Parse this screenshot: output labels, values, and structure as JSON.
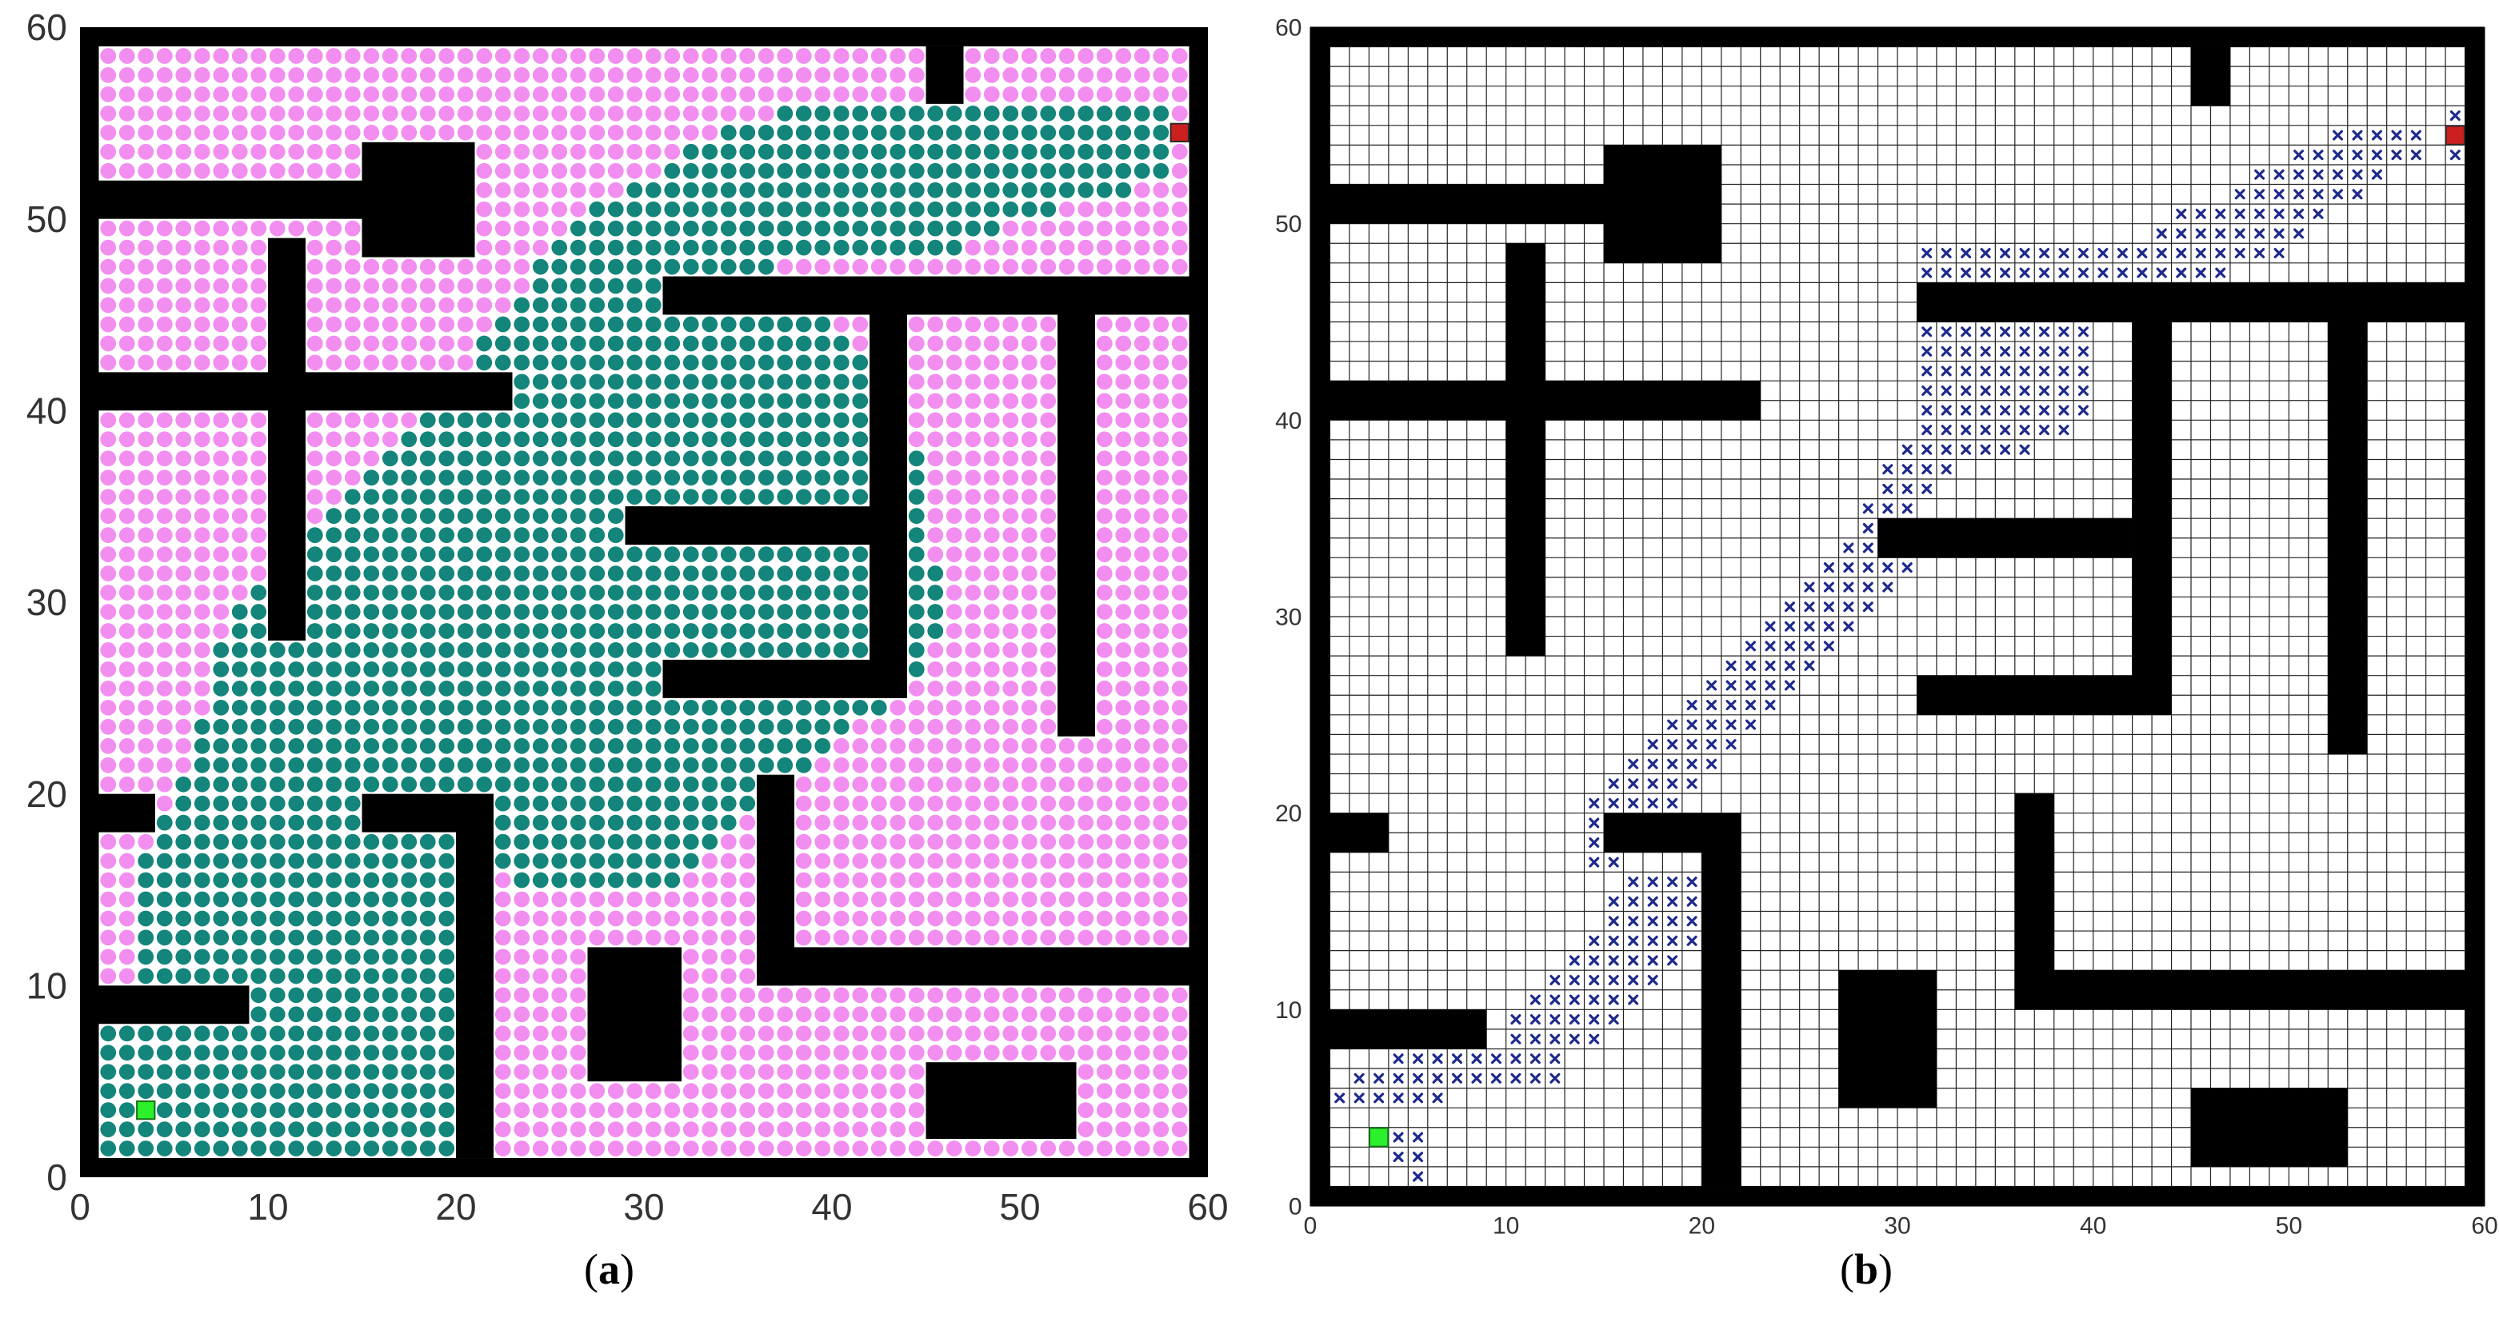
{
  "panels": [
    {
      "id": "a",
      "caption_letter": "a",
      "style": "dots"
    },
    {
      "id": "b",
      "caption_letter": "b",
      "style": "grid"
    }
  ],
  "axes": {
    "xlim": [
      0,
      60
    ],
    "ylim": [
      0,
      60
    ],
    "x_ticks": [
      0,
      10,
      20,
      30,
      40,
      50,
      60
    ],
    "y_ticks": [
      0,
      10,
      20,
      30,
      40,
      50,
      60
    ]
  },
  "colors": {
    "obstacle": "#000000",
    "free_dot": "#f28ef0",
    "explored_dot": "#13857b",
    "path_marker": "#1f2a8c",
    "start": "#2bf02b",
    "goal": "#cc1f1f",
    "grid_line": "#222222"
  },
  "map": {
    "obstacles": [
      [
        0,
        0,
        60,
        1
      ],
      [
        0,
        59,
        60,
        60
      ],
      [
        0,
        0,
        1,
        60
      ],
      [
        59,
        0,
        60,
        60
      ],
      [
        45,
        56,
        47,
        59
      ],
      [
        1,
        50,
        15,
        52
      ],
      [
        15,
        48,
        21,
        54
      ],
      [
        10,
        28,
        12,
        49
      ],
      [
        1,
        40,
        23,
        42
      ],
      [
        31,
        45,
        59,
        47
      ],
      [
        42,
        25,
        44,
        45
      ],
      [
        31,
        25,
        44,
        27
      ],
      [
        29,
        33,
        42,
        35
      ],
      [
        29,
        33,
        31,
        35
      ],
      [
        52,
        23,
        54,
        45
      ],
      [
        1,
        18,
        4,
        20
      ],
      [
        1,
        8,
        9,
        10
      ],
      [
        15,
        18,
        22,
        20
      ],
      [
        20,
        1,
        22,
        20
      ],
      [
        27,
        5,
        32,
        12
      ],
      [
        36,
        10,
        59,
        12
      ],
      [
        36,
        10,
        38,
        21
      ],
      [
        45,
        2,
        53,
        6
      ]
    ],
    "start": [
      3.5,
      3.5
    ],
    "goal": [
      58.5,
      54.5
    ]
  },
  "path_cells": [
    [
      5,
      1
    ],
    [
      4,
      2
    ],
    [
      5,
      2
    ],
    [
      4,
      3
    ],
    [
      5,
      3
    ],
    [
      1,
      5
    ],
    [
      2,
      5
    ],
    [
      3,
      5
    ],
    [
      4,
      5
    ],
    [
      5,
      5
    ],
    [
      6,
      5
    ],
    [
      2,
      6
    ],
    [
      3,
      6
    ],
    [
      4,
      6
    ],
    [
      5,
      6
    ],
    [
      6,
      6
    ],
    [
      7,
      6
    ],
    [
      8,
      6
    ],
    [
      9,
      6
    ],
    [
      10,
      6
    ],
    [
      11,
      6
    ],
    [
      12,
      6
    ],
    [
      4,
      7
    ],
    [
      5,
      7
    ],
    [
      6,
      7
    ],
    [
      7,
      7
    ],
    [
      8,
      7
    ],
    [
      9,
      7
    ],
    [
      10,
      7
    ],
    [
      11,
      7
    ],
    [
      12,
      7
    ],
    [
      10,
      8
    ],
    [
      11,
      8
    ],
    [
      12,
      8
    ],
    [
      13,
      8
    ],
    [
      14,
      8
    ],
    [
      10,
      9
    ],
    [
      11,
      9
    ],
    [
      12,
      9
    ],
    [
      13,
      9
    ],
    [
      14,
      9
    ],
    [
      15,
      9
    ],
    [
      11,
      10
    ],
    [
      12,
      10
    ],
    [
      13,
      10
    ],
    [
      14,
      10
    ],
    [
      15,
      10
    ],
    [
      16,
      10
    ],
    [
      12,
      11
    ],
    [
      13,
      11
    ],
    [
      14,
      11
    ],
    [
      15,
      11
    ],
    [
      16,
      11
    ],
    [
      17,
      11
    ],
    [
      13,
      12
    ],
    [
      14,
      12
    ],
    [
      15,
      12
    ],
    [
      16,
      12
    ],
    [
      17,
      12
    ],
    [
      18,
      12
    ],
    [
      14,
      13
    ],
    [
      15,
      13
    ],
    [
      16,
      13
    ],
    [
      17,
      13
    ],
    [
      18,
      13
    ],
    [
      19,
      13
    ],
    [
      20,
      13
    ],
    [
      15,
      14
    ],
    [
      16,
      14
    ],
    [
      17,
      14
    ],
    [
      18,
      14
    ],
    [
      19,
      14
    ],
    [
      20,
      14
    ],
    [
      15,
      15
    ],
    [
      16,
      15
    ],
    [
      17,
      15
    ],
    [
      18,
      15
    ],
    [
      19,
      15
    ],
    [
      20,
      15
    ],
    [
      16,
      16
    ],
    [
      17,
      16
    ],
    [
      18,
      16
    ],
    [
      19,
      16
    ],
    [
      20,
      16
    ],
    [
      14,
      17
    ],
    [
      15,
      17
    ],
    [
      14,
      18
    ],
    [
      15,
      18
    ],
    [
      16,
      18
    ],
    [
      14,
      19
    ],
    [
      15,
      19
    ],
    [
      16,
      19
    ],
    [
      17,
      19
    ],
    [
      14,
      20
    ],
    [
      15,
      20
    ],
    [
      16,
      20
    ],
    [
      17,
      20
    ],
    [
      18,
      20
    ],
    [
      15,
      21
    ],
    [
      16,
      21
    ],
    [
      17,
      21
    ],
    [
      18,
      21
    ],
    [
      19,
      21
    ],
    [
      16,
      22
    ],
    [
      17,
      22
    ],
    [
      18,
      22
    ],
    [
      19,
      22
    ],
    [
      20,
      22
    ],
    [
      17,
      23
    ],
    [
      18,
      23
    ],
    [
      19,
      23
    ],
    [
      20,
      23
    ],
    [
      21,
      23
    ],
    [
      18,
      24
    ],
    [
      19,
      24
    ],
    [
      20,
      24
    ],
    [
      21,
      24
    ],
    [
      22,
      24
    ],
    [
      19,
      25
    ],
    [
      20,
      25
    ],
    [
      21,
      25
    ],
    [
      22,
      25
    ],
    [
      23,
      25
    ],
    [
      20,
      26
    ],
    [
      21,
      26
    ],
    [
      22,
      26
    ],
    [
      23,
      26
    ],
    [
      24,
      26
    ],
    [
      21,
      27
    ],
    [
      22,
      27
    ],
    [
      23,
      27
    ],
    [
      24,
      27
    ],
    [
      25,
      27
    ],
    [
      22,
      28
    ],
    [
      23,
      28
    ],
    [
      24,
      28
    ],
    [
      25,
      28
    ],
    [
      26,
      28
    ],
    [
      23,
      29
    ],
    [
      24,
      29
    ],
    [
      25,
      29
    ],
    [
      26,
      29
    ],
    [
      27,
      29
    ],
    [
      24,
      30
    ],
    [
      25,
      30
    ],
    [
      26,
      30
    ],
    [
      27,
      30
    ],
    [
      28,
      30
    ],
    [
      25,
      31
    ],
    [
      26,
      31
    ],
    [
      27,
      31
    ],
    [
      28,
      31
    ],
    [
      29,
      31
    ],
    [
      26,
      32
    ],
    [
      27,
      32
    ],
    [
      28,
      32
    ],
    [
      29,
      32
    ],
    [
      30,
      32
    ],
    [
      27,
      33
    ],
    [
      28,
      33
    ],
    [
      29,
      33
    ],
    [
      30,
      33
    ],
    [
      28,
      34
    ],
    [
      29,
      34
    ],
    [
      30,
      34
    ],
    [
      28,
      35
    ],
    [
      29,
      35
    ],
    [
      30,
      35
    ],
    [
      29,
      36
    ],
    [
      30,
      36
    ],
    [
      31,
      36
    ],
    [
      29,
      37
    ],
    [
      30,
      37
    ],
    [
      31,
      37
    ],
    [
      32,
      37
    ],
    [
      30,
      38
    ],
    [
      31,
      38
    ],
    [
      32,
      38
    ],
    [
      33,
      38
    ],
    [
      34,
      38
    ],
    [
      35,
      38
    ],
    [
      36,
      38
    ],
    [
      31,
      39
    ],
    [
      32,
      39
    ],
    [
      33,
      39
    ],
    [
      34,
      39
    ],
    [
      35,
      39
    ],
    [
      36,
      39
    ],
    [
      37,
      39
    ],
    [
      38,
      39
    ],
    [
      31,
      40
    ],
    [
      32,
      40
    ],
    [
      33,
      40
    ],
    [
      34,
      40
    ],
    [
      35,
      40
    ],
    [
      36,
      40
    ],
    [
      37,
      40
    ],
    [
      38,
      40
    ],
    [
      39,
      40
    ],
    [
      31,
      41
    ],
    [
      32,
      41
    ],
    [
      33,
      41
    ],
    [
      34,
      41
    ],
    [
      35,
      41
    ],
    [
      36,
      41
    ],
    [
      37,
      41
    ],
    [
      38,
      41
    ],
    [
      39,
      41
    ],
    [
      31,
      42
    ],
    [
      32,
      42
    ],
    [
      33,
      42
    ],
    [
      34,
      42
    ],
    [
      35,
      42
    ],
    [
      36,
      42
    ],
    [
      37,
      42
    ],
    [
      38,
      42
    ],
    [
      39,
      42
    ],
    [
      31,
      43
    ],
    [
      32,
      43
    ],
    [
      33,
      43
    ],
    [
      34,
      43
    ],
    [
      35,
      43
    ],
    [
      36,
      43
    ],
    [
      37,
      43
    ],
    [
      38,
      43
    ],
    [
      39,
      43
    ],
    [
      31,
      44
    ],
    [
      32,
      44
    ],
    [
      33,
      44
    ],
    [
      34,
      44
    ],
    [
      35,
      44
    ],
    [
      36,
      44
    ],
    [
      37,
      44
    ],
    [
      38,
      44
    ],
    [
      39,
      44
    ],
    [
      31,
      45
    ],
    [
      32,
      45
    ],
    [
      31,
      46
    ],
    [
      32,
      46
    ],
    [
      31,
      47
    ],
    [
      32,
      47
    ],
    [
      33,
      47
    ],
    [
      34,
      47
    ],
    [
      35,
      47
    ],
    [
      36,
      47
    ],
    [
      37,
      47
    ],
    [
      38,
      47
    ],
    [
      39,
      47
    ],
    [
      40,
      47
    ],
    [
      41,
      47
    ],
    [
      42,
      47
    ],
    [
      43,
      47
    ],
    [
      44,
      47
    ],
    [
      45,
      47
    ],
    [
      46,
      47
    ],
    [
      31,
      48
    ],
    [
      32,
      48
    ],
    [
      33,
      48
    ],
    [
      34,
      48
    ],
    [
      35,
      48
    ],
    [
      36,
      48
    ],
    [
      37,
      48
    ],
    [
      38,
      48
    ],
    [
      39,
      48
    ],
    [
      40,
      48
    ],
    [
      41,
      48
    ],
    [
      42,
      48
    ],
    [
      43,
      48
    ],
    [
      44,
      48
    ],
    [
      45,
      48
    ],
    [
      46,
      48
    ],
    [
      47,
      48
    ],
    [
      48,
      48
    ],
    [
      49,
      48
    ],
    [
      43,
      49
    ],
    [
      44,
      49
    ],
    [
      45,
      49
    ],
    [
      46,
      49
    ],
    [
      47,
      49
    ],
    [
      48,
      49
    ],
    [
      49,
      49
    ],
    [
      50,
      49
    ],
    [
      44,
      50
    ],
    [
      45,
      50
    ],
    [
      46,
      50
    ],
    [
      47,
      50
    ],
    [
      48,
      50
    ],
    [
      49,
      50
    ],
    [
      50,
      50
    ],
    [
      51,
      50
    ],
    [
      47,
      51
    ],
    [
      48,
      51
    ],
    [
      49,
      51
    ],
    [
      50,
      51
    ],
    [
      51,
      51
    ],
    [
      52,
      51
    ],
    [
      53,
      51
    ],
    [
      48,
      52
    ],
    [
      49,
      52
    ],
    [
      50,
      52
    ],
    [
      51,
      52
    ],
    [
      52,
      52
    ],
    [
      53,
      52
    ],
    [
      54,
      52
    ],
    [
      50,
      53
    ],
    [
      51,
      53
    ],
    [
      52,
      53
    ],
    [
      53,
      53
    ],
    [
      54,
      53
    ],
    [
      55,
      53
    ],
    [
      56,
      53
    ],
    [
      58,
      53
    ],
    [
      52,
      54
    ],
    [
      53,
      54
    ],
    [
      54,
      54
    ],
    [
      55,
      54
    ],
    [
      56,
      54
    ],
    [
      58,
      54
    ],
    [
      58,
      55
    ]
  ],
  "explored_region": [
    [
      1,
      1
    ],
    [
      1,
      8
    ],
    [
      3,
      8
    ],
    [
      3,
      16
    ],
    [
      4,
      18
    ],
    [
      5,
      20
    ],
    [
      7,
      25
    ],
    [
      8,
      30
    ],
    [
      10,
      31
    ],
    [
      14,
      36
    ],
    [
      19,
      40
    ],
    [
      24,
      47
    ],
    [
      28,
      51
    ],
    [
      35,
      55
    ],
    [
      40,
      56
    ],
    [
      58,
      56
    ],
    [
      58,
      52
    ],
    [
      50,
      50
    ],
    [
      46,
      48
    ],
    [
      37,
      48
    ],
    [
      40,
      44
    ],
    [
      44,
      42
    ],
    [
      45,
      35
    ],
    [
      46,
      30
    ],
    [
      45,
      26
    ],
    [
      42,
      24
    ],
    [
      38,
      21
    ],
    [
      36,
      19
    ],
    [
      31,
      15
    ],
    [
      24,
      15
    ],
    [
      22,
      17
    ],
    [
      22,
      1
    ]
  ]
}
